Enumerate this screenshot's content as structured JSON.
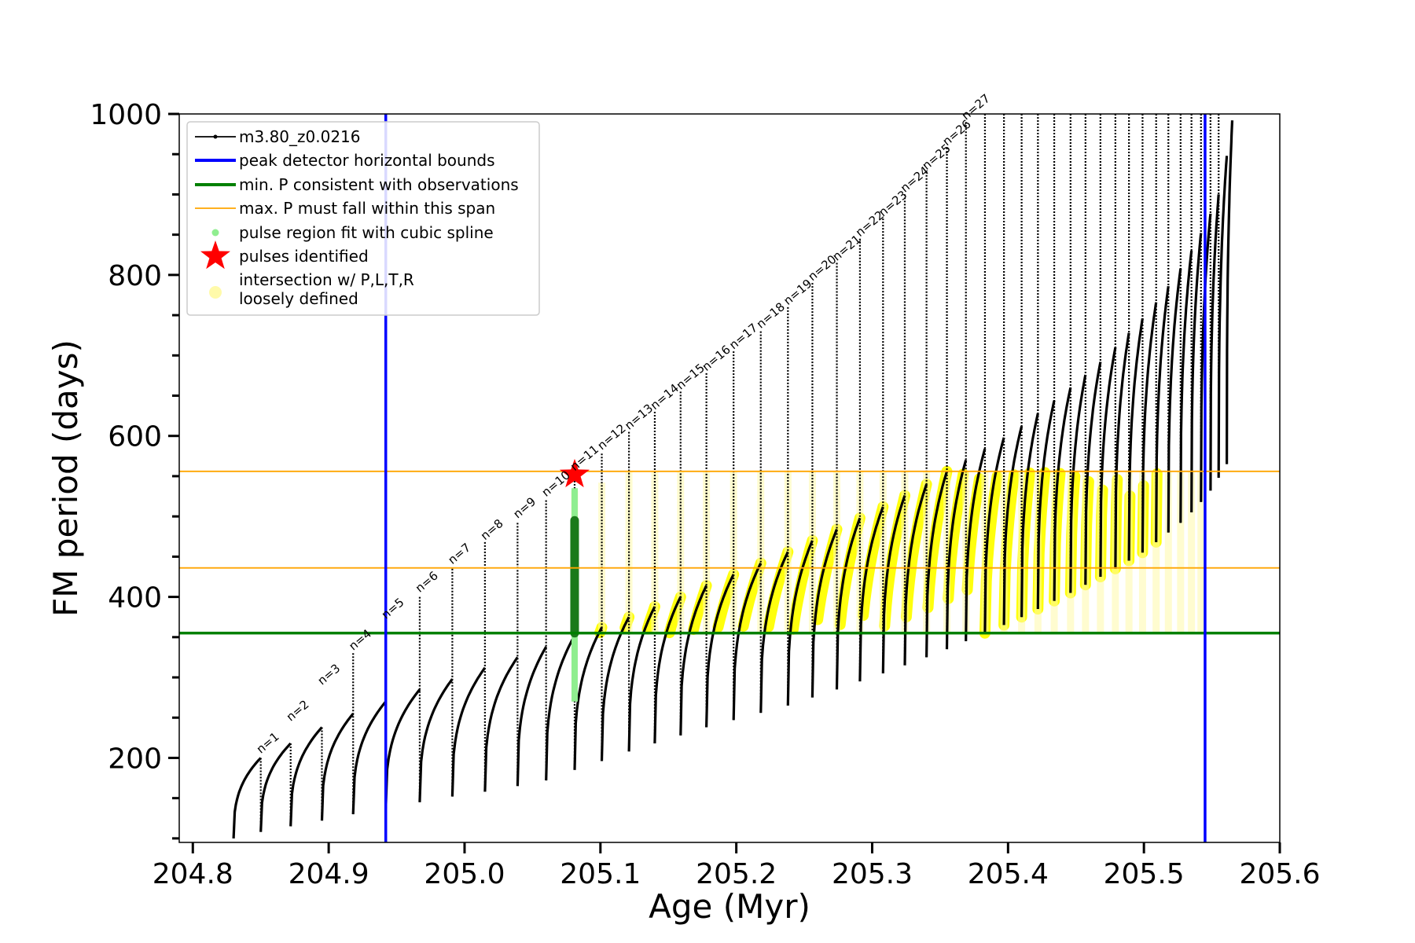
{
  "chart_data": {
    "type": "line",
    "xlabel": "Age (Myr)",
    "ylabel": "FM period (days)",
    "xlim": [
      204.79,
      205.6
    ],
    "ylim": [
      95,
      1000
    ],
    "x_ticks": [
      204.8,
      204.9,
      205.0,
      205.1,
      205.2,
      205.3,
      205.4,
      205.5,
      205.6
    ],
    "x_tick_labels": [
      "204.8",
      "204.9",
      "205.0",
      "205.1",
      "205.2",
      "205.3",
      "205.4",
      "205.5",
      "205.6"
    ],
    "y_ticks": [
      200,
      400,
      600,
      800,
      1000
    ],
    "y_tick_labels": [
      "200",
      "400",
      "600",
      "800",
      "1000"
    ],
    "legend_position": "top-left",
    "legend": [
      {
        "label": "m3.80_z0.0216",
        "marker": "line-dot",
        "color": "#000000"
      },
      {
        "label": "peak detector horizontal bounds",
        "marker": "line",
        "color": "#0000ff"
      },
      {
        "label": "min. P consistent with observations",
        "marker": "line",
        "color": "#008000"
      },
      {
        "label": "max. P must fall within this span",
        "marker": "thin-line",
        "color": "#ffa500"
      },
      {
        "label": "pulse region fit with cubic spline",
        "marker": "dot",
        "color": "#90ee90"
      },
      {
        "label": "pulses identified",
        "marker": "star",
        "color": "#ff0000"
      },
      {
        "label": "intersection w/ P,L,T,R",
        "label_line2": "loosely defined",
        "marker": "dot",
        "color": "#fffaaa"
      }
    ],
    "vertical_lines": [
      {
        "name": "peak detector horizontal bounds",
        "x": 204.942,
        "color": "#0000ff"
      },
      {
        "name": "peak detector horizontal bounds",
        "x": 205.545,
        "color": "#0000ff"
      }
    ],
    "horizontal_lines": [
      {
        "name": "min. P consistent with observations",
        "y": 355,
        "color": "#008000"
      },
      {
        "name": "max. P must fall within this span",
        "y": 436,
        "color": "#ffa500"
      },
      {
        "name": "max. P must fall within this span",
        "y": 556,
        "color": "#ffa500"
      }
    ],
    "pulses": [
      {
        "n": "n=1",
        "age": 204.85,
        "pre_min": 100,
        "peak": 200,
        "drop": 108
      },
      {
        "n": "n=2",
        "age": 204.872,
        "pre_min": 108,
        "peak": 218,
        "drop": 115
      },
      {
        "n": "n=3",
        "age": 204.895,
        "pre_min": 115,
        "peak": 238,
        "drop": 122
      },
      {
        "n": "n=4",
        "age": 204.918,
        "pre_min": 122,
        "peak": 255,
        "drop": 130
      },
      {
        "n": "n=5",
        "age": 204.942,
        "pre_min": 130,
        "peak": 270,
        "drop": 137
      },
      {
        "n": "n=6",
        "age": 204.967,
        "pre_min": 137,
        "peak": 285,
        "drop": 145
      },
      {
        "n": "n=7",
        "age": 204.991,
        "pre_min": 145,
        "peak": 298,
        "drop": 152
      },
      {
        "n": "n=8",
        "age": 205.015,
        "pre_min": 152,
        "peak": 312,
        "drop": 158
      },
      {
        "n": "n=9",
        "age": 205.039,
        "pre_min": 158,
        "peak": 325,
        "drop": 165
      },
      {
        "n": "n=10",
        "age": 205.06,
        "pre_min": 165,
        "peak": 338,
        "drop": 172
      },
      {
        "n": "n=11",
        "age": 205.081,
        "pre_min": 172,
        "peak": 352,
        "drop": 185
      },
      {
        "n": "n=12",
        "age": 205.101,
        "pre_min": 185,
        "peak": 362,
        "drop": 196
      },
      {
        "n": "n=13",
        "age": 205.121,
        "pre_min": 196,
        "peak": 375,
        "drop": 208
      },
      {
        "n": "n=14",
        "age": 205.14,
        "pre_min": 208,
        "peak": 388,
        "drop": 218
      },
      {
        "n": "n=15",
        "age": 205.159,
        "pre_min": 218,
        "peak": 400,
        "drop": 228
      },
      {
        "n": "n=16",
        "age": 205.178,
        "pre_min": 228,
        "peak": 414,
        "drop": 238
      },
      {
        "n": "n=17",
        "age": 205.198,
        "pre_min": 238,
        "peak": 428,
        "drop": 247
      },
      {
        "n": "n=18",
        "age": 205.218,
        "pre_min": 247,
        "peak": 442,
        "drop": 256
      },
      {
        "n": "n=19",
        "age": 205.238,
        "pre_min": 256,
        "peak": 456,
        "drop": 265
      },
      {
        "n": "n=20",
        "age": 205.256,
        "pre_min": 265,
        "peak": 470,
        "drop": 275
      },
      {
        "n": "n=21",
        "age": 205.274,
        "pre_min": 275,
        "peak": 484,
        "drop": 285
      },
      {
        "n": "n=22",
        "age": 205.291,
        "pre_min": 285,
        "peak": 498,
        "drop": 295
      },
      {
        "n": "n=23",
        "age": 205.308,
        "pre_min": 295,
        "peak": 512,
        "drop": 305
      },
      {
        "n": "n=24",
        "age": 205.324,
        "pre_min": 305,
        "peak": 526,
        "drop": 315
      },
      {
        "n": "n=25",
        "age": 205.34,
        "pre_min": 315,
        "peak": 540,
        "drop": 325
      },
      {
        "n": "n=26",
        "age": 205.355,
        "pre_min": 325,
        "peak": 556,
        "drop": 335
      },
      {
        "n": "n=27",
        "age": 205.369,
        "pre_min": 335,
        "peak": 570,
        "drop": 345
      },
      {
        "n": "",
        "age": 205.383,
        "pre_min": 345,
        "peak": 584,
        "drop": 355
      },
      {
        "n": "",
        "age": 205.397,
        "pre_min": 355,
        "peak": 598,
        "drop": 365
      },
      {
        "n": "",
        "age": 205.41,
        "pre_min": 365,
        "peak": 612,
        "drop": 375
      },
      {
        "n": "",
        "age": 205.422,
        "pre_min": 375,
        "peak": 628,
        "drop": 385
      },
      {
        "n": "",
        "age": 205.434,
        "pre_min": 385,
        "peak": 644,
        "drop": 395
      },
      {
        "n": "",
        "age": 205.446,
        "pre_min": 395,
        "peak": 660,
        "drop": 405
      },
      {
        "n": "",
        "age": 205.457,
        "pre_min": 405,
        "peak": 676,
        "drop": 415
      },
      {
        "n": "",
        "age": 205.468,
        "pre_min": 415,
        "peak": 692,
        "drop": 425
      },
      {
        "n": "",
        "age": 205.479,
        "pre_min": 425,
        "peak": 710,
        "drop": 435
      },
      {
        "n": "",
        "age": 205.489,
        "pre_min": 435,
        "peak": 728,
        "drop": 445
      },
      {
        "n": "",
        "age": 205.499,
        "pre_min": 445,
        "peak": 746,
        "drop": 455
      },
      {
        "n": "",
        "age": 205.509,
        "pre_min": 455,
        "peak": 766,
        "drop": 468
      },
      {
        "n": "",
        "age": 205.518,
        "pre_min": 468,
        "peak": 786,
        "drop": 480
      },
      {
        "n": "",
        "age": 205.527,
        "pre_min": 480,
        "peak": 808,
        "drop": 492
      },
      {
        "n": "",
        "age": 205.535,
        "pre_min": 492,
        "peak": 830,
        "drop": 505
      },
      {
        "n": "",
        "age": 205.542,
        "pre_min": 505,
        "peak": 852,
        "drop": 518
      },
      {
        "n": "",
        "age": 205.549,
        "pre_min": 518,
        "peak": 876,
        "drop": 532
      },
      {
        "n": "",
        "age": 205.555,
        "pre_min": 532,
        "peak": 900,
        "drop": 548
      },
      {
        "n": "",
        "age": 205.561,
        "pre_min": 548,
        "peak": 948,
        "drop": 565
      },
      {
        "n": "",
        "age": 205.565,
        "pre_min": 565,
        "peak": 992,
        "drop": 585
      }
    ],
    "spikes": [
      {
        "age": 204.85,
        "top": 200
      },
      {
        "age": 204.872,
        "top": 218
      },
      {
        "age": 204.895,
        "top": 238
      },
      {
        "age": 204.918,
        "top": 330
      },
      {
        "age": 204.942,
        "top": 368
      },
      {
        "age": 204.967,
        "top": 400
      },
      {
        "age": 204.991,
        "top": 435
      },
      {
        "age": 205.015,
        "top": 468
      },
      {
        "age": 205.039,
        "top": 492
      },
      {
        "age": 205.06,
        "top": 520
      },
      {
        "age": 205.081,
        "top": 552
      },
      {
        "age": 205.101,
        "top": 578
      },
      {
        "age": 205.121,
        "top": 605
      },
      {
        "age": 205.14,
        "top": 630
      },
      {
        "age": 205.159,
        "top": 655
      },
      {
        "age": 205.178,
        "top": 678
      },
      {
        "age": 205.198,
        "top": 705
      },
      {
        "age": 205.218,
        "top": 730
      },
      {
        "age": 205.238,
        "top": 760
      },
      {
        "age": 205.256,
        "top": 790
      },
      {
        "age": 205.274,
        "top": 815
      },
      {
        "age": 205.291,
        "top": 845
      },
      {
        "age": 205.308,
        "top": 870
      },
      {
        "age": 205.324,
        "top": 900
      },
      {
        "age": 205.34,
        "top": 928
      },
      {
        "age": 205.355,
        "top": 958
      },
      {
        "age": 205.369,
        "top": 990
      },
      {
        "age": 205.383,
        "top": 1000
      },
      {
        "age": 205.397,
        "top": 1000
      },
      {
        "age": 205.41,
        "top": 1000
      },
      {
        "age": 205.422,
        "top": 1000
      },
      {
        "age": 205.434,
        "top": 1000
      },
      {
        "age": 205.446,
        "top": 1000
      },
      {
        "age": 205.457,
        "top": 1000
      },
      {
        "age": 205.468,
        "top": 1000
      },
      {
        "age": 205.479,
        "top": 1000
      },
      {
        "age": 205.489,
        "top": 1000
      },
      {
        "age": 205.499,
        "top": 1000
      },
      {
        "age": 205.509,
        "top": 1000
      },
      {
        "age": 205.518,
        "top": 1000
      },
      {
        "age": 205.527,
        "top": 1000
      },
      {
        "age": 205.535,
        "top": 1000
      },
      {
        "age": 205.542,
        "top": 1000
      },
      {
        "age": 205.549,
        "top": 1000
      },
      {
        "age": 205.555,
        "top": 1000
      }
    ],
    "identified_pulse": {
      "age": 205.081,
      "period": 552
    },
    "spline_fit_region": {
      "age": 205.081,
      "period_min": 270,
      "period_max": 495
    },
    "pulse_labels": [
      {
        "text": "n=1",
        "age": 204.85,
        "period": 205
      },
      {
        "text": "n=2",
        "age": 204.872,
        "period": 245
      },
      {
        "text": "n=3",
        "age": 204.895,
        "period": 290
      },
      {
        "text": "n=4",
        "age": 204.918,
        "period": 333
      },
      {
        "text": "n=5",
        "age": 204.942,
        "period": 372
      },
      {
        "text": "n=6",
        "age": 204.967,
        "period": 405
      },
      {
        "text": "n=7",
        "age": 204.991,
        "period": 440
      },
      {
        "text": "n=8",
        "age": 205.015,
        "period": 470
      },
      {
        "text": "n=9",
        "age": 205.039,
        "period": 497
      },
      {
        "text": "n=10",
        "age": 205.06,
        "period": 524
      },
      {
        "text": "n=11",
        "age": 205.081,
        "period": 556
      },
      {
        "text": "n=12",
        "age": 205.101,
        "period": 582
      },
      {
        "text": "n=13",
        "age": 205.121,
        "period": 607
      },
      {
        "text": "n=14",
        "age": 205.14,
        "period": 632
      },
      {
        "text": "n=15",
        "age": 205.159,
        "period": 657
      },
      {
        "text": "n=16",
        "age": 205.178,
        "period": 680
      },
      {
        "text": "n=17",
        "age": 205.198,
        "period": 707
      },
      {
        "text": "n=18",
        "age": 205.218,
        "period": 733
      },
      {
        "text": "n=19",
        "age": 205.238,
        "period": 762
      },
      {
        "text": "n=20",
        "age": 205.256,
        "period": 792
      },
      {
        "text": "n=21",
        "age": 205.274,
        "period": 817
      },
      {
        "text": "n=22",
        "age": 205.291,
        "period": 847
      },
      {
        "text": "n=23",
        "age": 205.308,
        "period": 872
      },
      {
        "text": "n=24",
        "age": 205.324,
        "period": 902
      },
      {
        "text": "n=25",
        "age": 205.34,
        "period": 930
      },
      {
        "text": "n=26",
        "age": 205.355,
        "period": 960
      },
      {
        "text": "n=27",
        "age": 205.369,
        "period": 992
      }
    ]
  }
}
